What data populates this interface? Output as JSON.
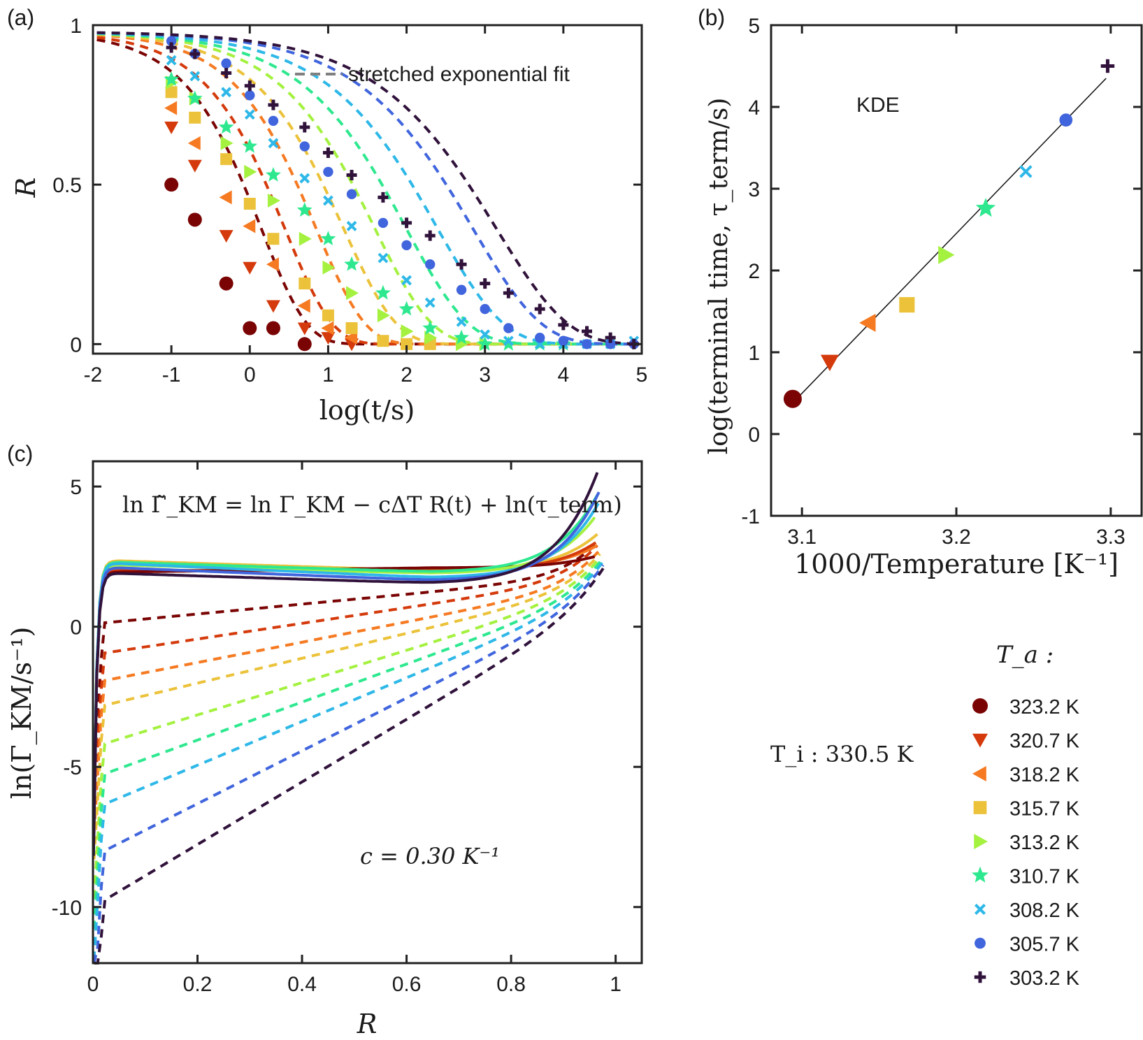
{
  "colors": {
    "323.2": "#7a0403",
    "320.7": "#d43a0b",
    "318.2": "#f57a22",
    "315.7": "#ebc23a",
    "313.2": "#a4f140",
    "310.7": "#2ee88f",
    "308.2": "#2eb8e8",
    "305.7": "#4065dd",
    "303.2": "#30123b"
  },
  "legend": {
    "title": "T_a :",
    "ti_label": "T_i : 330.5 K",
    "entries": [
      {
        "label": "323.2 K",
        "marker": "circle",
        "color": "#7a0403"
      },
      {
        "label": "320.7 K",
        "marker": "triangle-down",
        "color": "#d43a0b"
      },
      {
        "label": "318.2 K",
        "marker": "triangle-left",
        "color": "#f57a22"
      },
      {
        "label": "315.7 K",
        "marker": "square",
        "color": "#ebc23a"
      },
      {
        "label": "313.2 K",
        "marker": "triangle-right",
        "color": "#a4f140"
      },
      {
        "label": "310.7 K",
        "marker": "star",
        "color": "#2ee88f"
      },
      {
        "label": "308.2 K",
        "marker": "cross",
        "color": "#2eb8e8"
      },
      {
        "label": "305.7 K",
        "marker": "dot",
        "color": "#4065dd"
      },
      {
        "label": "303.2 K",
        "marker": "plus",
        "color": "#30123b"
      }
    ]
  },
  "chart_data": [
    {
      "panel": "(a)",
      "type": "scatter",
      "xlabel": "log(t/s)",
      "ylabel": "R",
      "xlim": [
        -2,
        5
      ],
      "ylim": [
        -0.03,
        1
      ],
      "xticks": [
        "-2",
        "-1",
        "0",
        "1",
        "2",
        "3",
        "4",
        "5"
      ],
      "yticks": [
        "0",
        "0.5",
        "1"
      ],
      "legend_text": "stretched exponential fit",
      "series": [
        {
          "name": "323.2 K",
          "log_tau": 0.15,
          "beta": 0.75,
          "points": [
            [
              -1,
              0.5
            ],
            [
              -0.7,
              0.39
            ],
            [
              -0.3,
              0.19
            ],
            [
              0,
              0.05
            ],
            [
              0.3,
              0.05
            ],
            [
              0.7,
              0.0
            ]
          ]
        },
        {
          "name": "320.7 K",
          "log_tau": 0.45,
          "beta": 0.72,
          "points": [
            [
              -1,
              0.68
            ],
            [
              -0.7,
              0.56
            ],
            [
              -0.3,
              0.34
            ],
            [
              0,
              0.24
            ],
            [
              0.3,
              0.12
            ],
            [
              0.7,
              0.05
            ],
            [
              1,
              0.02
            ],
            [
              1.3,
              0.0
            ]
          ]
        },
        {
          "name": "318.2 K",
          "log_tau": 0.85,
          "beta": 0.7,
          "points": [
            [
              -1,
              0.74
            ],
            [
              -0.7,
              0.63
            ],
            [
              -0.3,
              0.46
            ],
            [
              0,
              0.37
            ],
            [
              0.3,
              0.25
            ],
            [
              0.7,
              0.12
            ],
            [
              1,
              0.05
            ],
            [
              1.3,
              0.02
            ]
          ]
        },
        {
          "name": "315.7 K",
          "log_tau": 1.2,
          "beta": 0.65,
          "points": [
            [
              -1,
              0.79
            ],
            [
              -0.7,
              0.71
            ],
            [
              -0.3,
              0.58
            ],
            [
              0,
              0.44
            ],
            [
              0.3,
              0.33
            ],
            [
              0.7,
              0.19
            ],
            [
              1,
              0.09
            ],
            [
              1.3,
              0.05
            ],
            [
              1.7,
              0.01
            ],
            [
              2,
              0.0
            ],
            [
              2.3,
              0.0
            ]
          ]
        },
        {
          "name": "313.2 K",
          "log_tau": 1.6,
          "beta": 0.6,
          "points": [
            [
              -1,
              0.82
            ],
            [
              -0.7,
              0.77
            ],
            [
              -0.3,
              0.63
            ],
            [
              0,
              0.54
            ],
            [
              0.3,
              0.45
            ],
            [
              0.7,
              0.33
            ],
            [
              1,
              0.24
            ],
            [
              1.3,
              0.16
            ],
            [
              1.7,
              0.09
            ],
            [
              2,
              0.04
            ],
            [
              2.3,
              0.02
            ],
            [
              2.7,
              0.0
            ],
            [
              3,
              0.0
            ]
          ]
        },
        {
          "name": "310.7 K",
          "log_tau": 2.0,
          "beta": 0.55,
          "points": [
            [
              -1,
              0.83
            ],
            [
              -0.7,
              0.77
            ],
            [
              -0.3,
              0.68
            ],
            [
              0,
              0.62
            ],
            [
              0.3,
              0.53
            ],
            [
              0.7,
              0.42
            ],
            [
              1,
              0.33
            ],
            [
              1.3,
              0.25
            ],
            [
              1.7,
              0.16
            ],
            [
              2,
              0.11
            ],
            [
              2.3,
              0.05
            ],
            [
              2.7,
              0.02
            ],
            [
              3,
              0.0
            ],
            [
              3.3,
              0.0
            ],
            [
              3.7,
              0.0
            ],
            [
              4,
              0.0
            ]
          ]
        },
        {
          "name": "308.2 K",
          "log_tau": 2.4,
          "beta": 0.52,
          "points": [
            [
              -1,
              0.89
            ],
            [
              -0.7,
              0.84
            ],
            [
              -0.3,
              0.79
            ],
            [
              0,
              0.72
            ],
            [
              0.3,
              0.63
            ],
            [
              0.7,
              0.52
            ],
            [
              1,
              0.45
            ],
            [
              1.3,
              0.37
            ],
            [
              1.7,
              0.27
            ],
            [
              2,
              0.2
            ],
            [
              2.3,
              0.13
            ],
            [
              2.7,
              0.07
            ],
            [
              3,
              0.03
            ],
            [
              3.3,
              0.01
            ],
            [
              3.7,
              0.0
            ],
            [
              4,
              0.0
            ],
            [
              4.3,
              0.0
            ],
            [
              4.6,
              0.0
            ],
            [
              4.9,
              0.01
            ]
          ]
        },
        {
          "name": "305.7 K",
          "log_tau": 2.85,
          "beta": 0.5,
          "points": [
            [
              -1,
              0.95
            ],
            [
              -0.7,
              0.91
            ],
            [
              -0.3,
              0.88
            ],
            [
              0,
              0.78
            ],
            [
              0.3,
              0.7
            ],
            [
              0.7,
              0.62
            ],
            [
              1,
              0.54
            ],
            [
              1.3,
              0.47
            ],
            [
              1.7,
              0.38
            ],
            [
              2,
              0.31
            ],
            [
              2.3,
              0.25
            ],
            [
              2.7,
              0.17
            ],
            [
              3,
              0.11
            ],
            [
              3.3,
              0.05
            ],
            [
              3.7,
              0.02
            ],
            [
              4,
              0.01
            ],
            [
              4.3,
              0.0
            ],
            [
              4.6,
              0.0
            ],
            [
              4.9,
              0.0
            ]
          ]
        },
        {
          "name": "303.2 K",
          "log_tau": 3.15,
          "beta": 0.48,
          "points": [
            [
              -1,
              0.93
            ],
            [
              -0.7,
              0.91
            ],
            [
              -0.3,
              0.85
            ],
            [
              0,
              0.81
            ],
            [
              0.3,
              0.75
            ],
            [
              0.7,
              0.68
            ],
            [
              1,
              0.6
            ],
            [
              1.3,
              0.53
            ],
            [
              1.7,
              0.46
            ],
            [
              2,
              0.38
            ],
            [
              2.3,
              0.34
            ],
            [
              2.7,
              0.25
            ],
            [
              3,
              0.19
            ],
            [
              3.3,
              0.16
            ],
            [
              3.7,
              0.11
            ],
            [
              4,
              0.06
            ],
            [
              4.3,
              0.04
            ],
            [
              4.6,
              0.02
            ],
            [
              4.9,
              0.0
            ]
          ]
        }
      ]
    },
    {
      "panel": "(b)",
      "type": "scatter",
      "xlabel": "1000/Temperature [K⁻¹]",
      "ylabel": "log(terminal time, τ_term/s)",
      "annotation": "KDE",
      "xlim": [
        3.08,
        3.32
      ],
      "ylim": [
        -1,
        5
      ],
      "xticks": [
        "3.1",
        "3.2",
        "3.3"
      ],
      "yticks": [
        "-1",
        "0",
        "1",
        "2",
        "3",
        "4",
        "5"
      ],
      "fit_line": [
        [
          3.094,
          0.38
        ],
        [
          3.297,
          4.35
        ]
      ],
      "points": [
        {
          "name": "323.2 K",
          "x": 3.094,
          "y": 0.43
        },
        {
          "name": "320.7 K",
          "x": 3.118,
          "y": 0.88
        },
        {
          "name": "318.2 K",
          "x": 3.143,
          "y": 1.36
        },
        {
          "name": "315.7 K",
          "x": 3.168,
          "y": 1.58
        },
        {
          "name": "313.2 K",
          "x": 3.193,
          "y": 2.19
        },
        {
          "name": "310.7 K",
          "x": 3.219,
          "y": 2.76
        },
        {
          "name": "308.2 K",
          "x": 3.245,
          "y": 3.21
        },
        {
          "name": "305.7 K",
          "x": 3.271,
          "y": 3.84
        },
        {
          "name": "303.2 K",
          "x": 3.298,
          "y": 4.5
        }
      ]
    },
    {
      "panel": "(c)",
      "type": "line",
      "xlabel": "R",
      "ylabel": "ln(Γ_KM/s⁻¹)",
      "xlim": [
        0,
        1.05
      ],
      "ylim": [
        -12,
        5.9
      ],
      "xticks": [
        "0",
        "0.2",
        "0.4",
        "0.6",
        "0.8",
        "1"
      ],
      "yticks": [
        "-10",
        "-5",
        "0",
        "5"
      ],
      "equation": "ln Γ̃_KM = ln Γ_KM − cΔT R(t) + ln(τ_term)",
      "c_label": "c = 0.30 K⁻¹",
      "dashed_series": [
        {
          "name": "323.2 K",
          "start": 0.1,
          "mid_slope": 1.9,
          "end": 3.0,
          "end_x": 0.965
        },
        {
          "name": "320.7 K",
          "start": -1.0,
          "mid_slope": 3.1,
          "end": 2.9,
          "end_x": 0.965
        },
        {
          "name": "318.2 K",
          "start": -2.0,
          "mid_slope": 4.2,
          "end": 2.7,
          "end_x": 0.968
        },
        {
          "name": "315.7 K",
          "start": -2.9,
          "mid_slope": 5.3,
          "end": 2.6,
          "end_x": 0.97
        },
        {
          "name": "313.2 K",
          "start": -4.3,
          "mid_slope": 6.2,
          "end": 2.5,
          "end_x": 0.972
        },
        {
          "name": "310.7 K",
          "start": -5.4,
          "mid_slope": 7.2,
          "end": 2.4,
          "end_x": 0.974
        },
        {
          "name": "308.2 K",
          "start": -6.5,
          "mid_slope": 8.2,
          "end": 2.3,
          "end_x": 0.975
        },
        {
          "name": "305.7 K",
          "start": -8.2,
          "mid_slope": 9.2,
          "end": 2.2,
          "end_x": 0.976
        },
        {
          "name": "303.2 K",
          "start": -10.0,
          "mid_slope": 10.2,
          "end": 2.1,
          "end_x": 0.977
        }
      ],
      "solid_series": [
        {
          "name": "315.7 K",
          "plateau": 2.35,
          "late": 2.0,
          "end": 3.3,
          "end_x": 0.965
        },
        {
          "name": "318.2 K",
          "plateau": 2.0,
          "late": 2.05,
          "end": 2.9,
          "end_x": 0.965
        },
        {
          "name": "320.7 K",
          "plateau": 2.0,
          "late": 2.0,
          "end": 3.0,
          "end_x": 0.962
        },
        {
          "name": "323.2 K",
          "plateau": 1.95,
          "late": 2.1,
          "end": 2.5,
          "end_x": 0.96
        },
        {
          "name": "313.2 K",
          "plateau": 2.2,
          "late": 1.9,
          "end": 3.9,
          "end_x": 0.96
        },
        {
          "name": "310.7 K",
          "plateau": 2.3,
          "late": 1.95,
          "end": 4.7,
          "end_x": 0.965
        },
        {
          "name": "308.2 K",
          "plateau": 2.25,
          "late": 1.75,
          "end": 4.4,
          "end_x": 0.967
        },
        {
          "name": "305.7 K",
          "plateau": 2.1,
          "late": 1.65,
          "end": 4.8,
          "end_x": 0.968
        },
        {
          "name": "303.2 K",
          "plateau": 1.9,
          "late": 1.55,
          "end": 5.5,
          "end_x": 0.965
        }
      ]
    }
  ]
}
